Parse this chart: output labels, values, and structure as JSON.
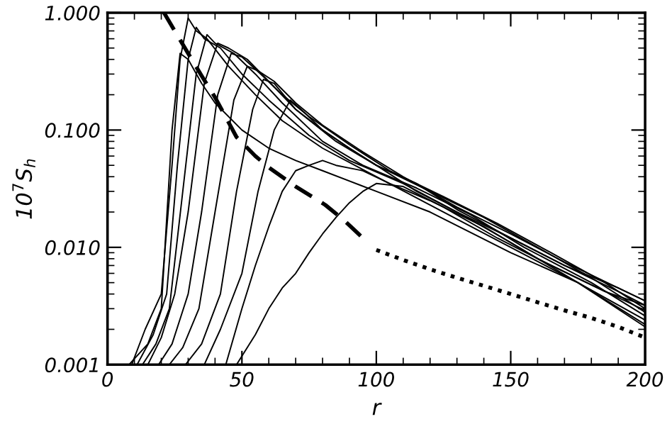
{
  "chart_data": {
    "type": "line",
    "xlabel": "r",
    "ylabel": "10$^{7}$S$_{h}$",
    "log": "y",
    "xlim": [
      0,
      200
    ],
    "ylim": [
      0.001,
      1.0
    ],
    "xticks": [
      0,
      50,
      100,
      150,
      200
    ],
    "yticks": [
      {
        "value": 0.001,
        "label": "0.001"
      },
      {
        "value": 0.01,
        "label": "0.010"
      },
      {
        "value": 0.1,
        "label": "0.100"
      },
      {
        "value": 1.0,
        "label": "1.000"
      }
    ],
    "series": [
      {
        "color": "#000000",
        "line_style": "dashed",
        "x": [
          21,
          25,
          30,
          35,
          40,
          48,
          55,
          60,
          70,
          81,
          88,
          95
        ],
        "values": [
          1.0,
          0.7,
          0.45,
          0.29,
          0.19,
          0.087,
          0.06,
          0.048,
          0.033,
          0.023,
          0.017,
          0.012
        ]
      },
      {
        "color": "#000000",
        "line_style": "dotted",
        "x": [
          100,
          110,
          120,
          130,
          140,
          150,
          160,
          170,
          180,
          190,
          200
        ],
        "values": [
          0.0095,
          0.0078,
          0.0065,
          0.0055,
          0.0047,
          0.004,
          0.0034,
          0.0029,
          0.0025,
          0.0021,
          0.0017
        ]
      },
      {
        "color": "#000000",
        "x": [
          8,
          15,
          20,
          24,
          27,
          30,
          35,
          40,
          50,
          60,
          70,
          80,
          100,
          120,
          150,
          175,
          200
        ],
        "values": [
          0.001,
          0.0015,
          0.003,
          0.1,
          0.45,
          0.4,
          0.25,
          0.17,
          0.1,
          0.07,
          0.055,
          0.045,
          0.03,
          0.02,
          0.009,
          0.005,
          0.0022
        ]
      },
      {
        "color": "#000000",
        "x": [
          9,
          14,
          20,
          24,
          27,
          30,
          33,
          37,
          45,
          55,
          65,
          80,
          100,
          125,
          150,
          175,
          200
        ],
        "values": [
          0.001,
          0.002,
          0.004,
          0.05,
          0.4,
          0.9,
          0.7,
          0.6,
          0.35,
          0.2,
          0.12,
          0.07,
          0.04,
          0.02,
          0.01,
          0.005,
          0.0021
        ]
      },
      {
        "color": "#000000",
        "x": [
          11,
          17,
          22,
          26,
          30,
          33,
          36,
          42,
          50,
          60,
          75,
          90,
          110,
          130,
          150,
          175,
          200
        ],
        "values": [
          0.001,
          0.0018,
          0.004,
          0.05,
          0.4,
          0.75,
          0.6,
          0.5,
          0.3,
          0.18,
          0.09,
          0.055,
          0.035,
          0.02,
          0.011,
          0.005,
          0.0024
        ]
      },
      {
        "color": "#000000",
        "x": [
          13,
          18,
          23,
          28,
          33,
          37,
          40,
          47,
          55,
          65,
          80,
          95,
          115,
          135,
          155,
          180,
          200
        ],
        "values": [
          0.001,
          0.0015,
          0.003,
          0.03,
          0.3,
          0.65,
          0.55,
          0.45,
          0.3,
          0.17,
          0.08,
          0.05,
          0.032,
          0.019,
          0.01,
          0.005,
          0.0026
        ]
      },
      {
        "color": "#000000",
        "x": [
          15,
          20,
          25,
          30,
          36,
          41,
          45,
          52,
          60,
          70,
          85,
          100,
          120,
          140,
          160,
          180,
          200
        ],
        "values": [
          0.001,
          0.0017,
          0.004,
          0.02,
          0.25,
          0.55,
          0.5,
          0.4,
          0.26,
          0.15,
          0.08,
          0.05,
          0.03,
          0.018,
          0.01,
          0.0055,
          0.0028
        ]
      },
      {
        "color": "#000000",
        "x": [
          19,
          24,
          30,
          35,
          41,
          46,
          50,
          57,
          65,
          75,
          90,
          105,
          125,
          145,
          165,
          185,
          200
        ],
        "values": [
          0.001,
          0.0015,
          0.004,
          0.02,
          0.2,
          0.45,
          0.42,
          0.3,
          0.2,
          0.13,
          0.075,
          0.045,
          0.027,
          0.016,
          0.009,
          0.005,
          0.003
        ]
      },
      {
        "color": "#000000",
        "x": [
          23,
          28,
          34,
          40,
          47,
          52,
          56,
          62,
          70,
          80,
          95,
          110,
          130,
          150,
          170,
          190,
          200
        ],
        "values": [
          0.001,
          0.0014,
          0.003,
          0.02,
          0.18,
          0.35,
          0.32,
          0.26,
          0.17,
          0.11,
          0.065,
          0.04,
          0.022,
          0.013,
          0.0075,
          0.0045,
          0.0035
        ]
      },
      {
        "color": "#000000",
        "x": [
          29,
          35,
          42,
          48,
          54,
          58,
          62,
          70,
          80,
          90,
          100,
          115,
          130,
          150,
          170,
          190,
          200
        ],
        "values": [
          0.001,
          0.0015,
          0.004,
          0.03,
          0.15,
          0.27,
          0.25,
          0.15,
          0.1,
          0.07,
          0.05,
          0.03,
          0.02,
          0.012,
          0.007,
          0.0042,
          0.0032
        ]
      },
      {
        "color": "#000000",
        "x": [
          36,
          42,
          50,
          56,
          62,
          68,
          72,
          80,
          90,
          100,
          115,
          130,
          150,
          170,
          190,
          200
        ],
        "values": [
          0.001,
          0.002,
          0.006,
          0.03,
          0.1,
          0.18,
          0.15,
          0.1,
          0.07,
          0.05,
          0.035,
          0.021,
          0.012,
          0.007,
          0.0045,
          0.0035
        ]
      },
      {
        "color": "#000000",
        "x": [
          44,
          50,
          55,
          60,
          65,
          70,
          75,
          80,
          85,
          95,
          105,
          120,
          140,
          160,
          180,
          200
        ],
        "values": [
          0.001,
          0.003,
          0.007,
          0.015,
          0.03,
          0.045,
          0.05,
          0.055,
          0.05,
          0.045,
          0.035,
          0.025,
          0.015,
          0.008,
          0.0048,
          0.0029
        ]
      },
      {
        "color": "#000000",
        "x": [
          48,
          55,
          60,
          65,
          70,
          75,
          80,
          85,
          90,
          95,
          100,
          110,
          125,
          145,
          165,
          185,
          200
        ],
        "values": [
          0.001,
          0.0018,
          0.003,
          0.0045,
          0.006,
          0.009,
          0.013,
          0.018,
          0.024,
          0.03,
          0.035,
          0.033,
          0.022,
          0.012,
          0.007,
          0.0042,
          0.0032
        ]
      }
    ]
  }
}
